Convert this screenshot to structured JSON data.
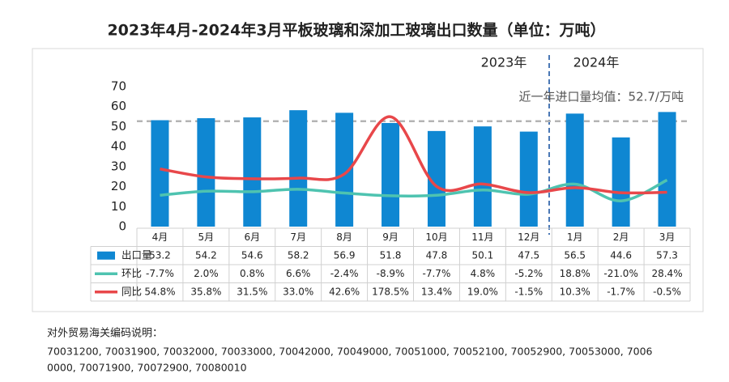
{
  "chart_data": {
    "type": "bar",
    "title": "2023年4月-2024年3月平板玻璃和深加工玻璃出口数量（单位：万吨）",
    "categories": [
      "4月",
      "5月",
      "6月",
      "7月",
      "8月",
      "9月",
      "10月",
      "11月",
      "12月",
      "1月",
      "2月",
      "3月"
    ],
    "series": [
      {
        "name": "出口量",
        "type": "bar",
        "color": "#0f87d2",
        "values": [
          53.2,
          54.2,
          54.6,
          58.2,
          56.9,
          51.8,
          47.8,
          50.1,
          47.5,
          56.5,
          44.6,
          57.3
        ]
      },
      {
        "name": "环比",
        "type": "line",
        "axis": "y2",
        "color": "#4ec3b0",
        "values": [
          -7.7,
          2.0,
          0.8,
          6.6,
          -2.4,
          -8.9,
          -7.7,
          4.8,
          -5.2,
          18.8,
          -21.0,
          28.4
        ],
        "value_labels": [
          "-7.7%",
          "2.0%",
          "0.8%",
          "6.6%",
          "-2.4%",
          "-8.9%",
          "-7.7%",
          "4.8%",
          "-5.2%",
          "18.8%",
          "-21.0%",
          "28.4%"
        ]
      },
      {
        "name": "同比",
        "type": "line",
        "axis": "y2",
        "color": "#e8474a",
        "values": [
          54.8,
          35.8,
          31.5,
          33.0,
          42.6,
          178.5,
          13.4,
          19.0,
          -1.5,
          10.3,
          -1.7,
          -0.5
        ],
        "value_labels": [
          "54.8%",
          "35.8%",
          "31.5%",
          "33.0%",
          "42.6%",
          "178.5%",
          "13.4%",
          "19.0%",
          "-1.5%",
          "10.3%",
          "-1.7%",
          "-0.5%"
        ]
      }
    ],
    "ylim": [
      0,
      70
    ],
    "yticks": [
      0,
      10,
      20,
      30,
      40,
      50,
      60,
      70
    ],
    "y2lim": [
      -82,
      250
    ],
    "average": 52.7,
    "average_color": "#b4b4b4",
    "annotations": {
      "year_left": "2023年",
      "year_right": "2024年",
      "average_label": "近一年进口量均值：52.7/万吨"
    },
    "note": {
      "heading": "对外贸易海关编码说明：",
      "lines": [
        "70031200, 70031900, 70032000, 70033000, 70042000, 70049000, 70051000, 70052100, 70052900, 70053000, 7006",
        "0000, 70071900, 70072900, 70080010"
      ]
    }
  }
}
